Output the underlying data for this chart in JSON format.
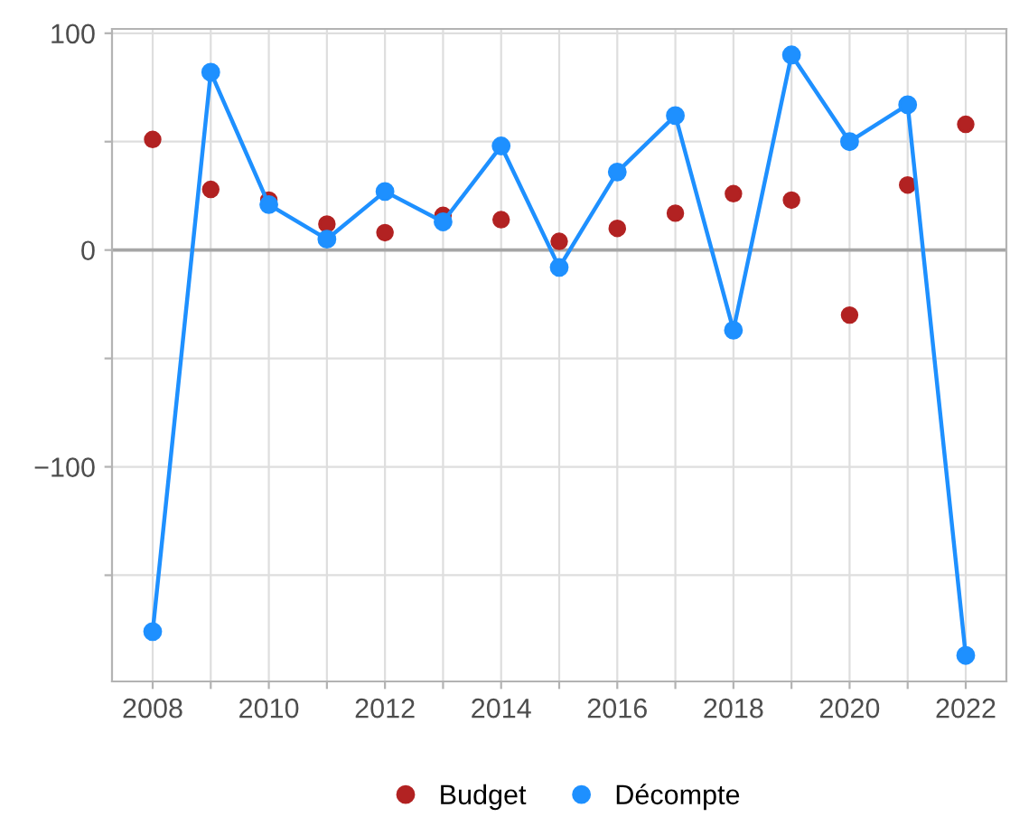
{
  "chart_data": {
    "type": "line",
    "x": [
      2008,
      2009,
      2010,
      2011,
      2012,
      2013,
      2014,
      2015,
      2016,
      2017,
      2018,
      2019,
      2020,
      2021,
      2022
    ],
    "series": [
      {
        "name": "Budget",
        "type": "scatter",
        "color": "#b22222",
        "values": [
          51,
          28,
          23,
          12,
          8,
          16,
          14,
          4,
          10,
          17,
          26,
          23,
          -30,
          30,
          58
        ]
      },
      {
        "name": "Décompte",
        "color": "#1e90ff",
        "marker": "circle",
        "values": [
          -176,
          82,
          21,
          5,
          27,
          13,
          48,
          -8,
          36,
          62,
          -37,
          90,
          50,
          67,
          -187
        ]
      }
    ],
    "xlim": [
      2007.3,
      2022.7
    ],
    "xticks": [
      2008,
      {
        "value": 2009,
        "label": null
      },
      2010,
      {
        "value": 2011,
        "label": null
      },
      2012,
      {
        "value": 2013,
        "label": null
      },
      2014,
      {
        "value": 2015,
        "label": null
      },
      2016,
      {
        "value": 2017,
        "label": null
      },
      2018,
      {
        "value": 2019,
        "label": null
      },
      2020,
      {
        "value": 2021,
        "label": null
      },
      2022
    ],
    "ylim": [
      -199,
      102
    ],
    "yticks": [
      {
        "value": -150,
        "label": null
      },
      {
        "value": -100,
        "label": "−100"
      },
      {
        "value": -50,
        "label": null
      },
      0,
      {
        "value": 50,
        "label": null
      },
      100
    ],
    "ref_lines": [
      {
        "axis": "y",
        "value": 0,
        "color": "#a6a6a6"
      }
    ],
    "grid": true,
    "legend": "bottom"
  }
}
